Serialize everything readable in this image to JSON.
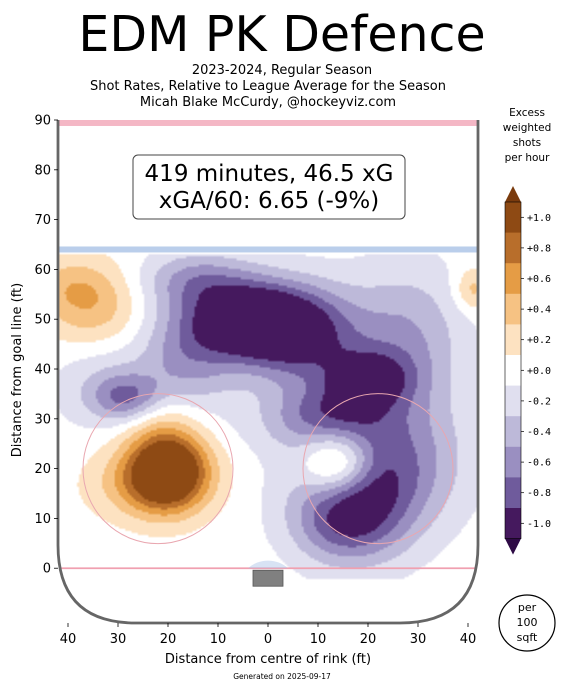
{
  "header": {
    "title": "EDM PK Defence",
    "subtitle_lines": [
      "2023-2024, Regular Season",
      "Shot Rates, Relative to League Average for the Season",
      "Micah Blake McCurdy, @hockeyviz.com"
    ]
  },
  "info_box": {
    "line1": "419 minutes, 46.5 xG",
    "line2": "xGA/60: 6.65 (-9%)"
  },
  "footer": {
    "generated": "Generated on 2025-09-17"
  },
  "colorbar": {
    "title_lines": [
      "Excess",
      "weighted",
      "shots",
      "per hour"
    ],
    "levels": [
      {
        "label": "+1.0",
        "color": "#8e4a14"
      },
      {
        "label": "+0.8",
        "color": "#b86e2b"
      },
      {
        "label": "+0.6",
        "color": "#e59c45"
      },
      {
        "label": "+0.4",
        "color": "#f6c283"
      },
      {
        "label": "+0.2",
        "color": "#fde2c1"
      },
      {
        "label": "+0.0",
        "color": "#ffffff"
      },
      {
        "label": "-0.2",
        "color": "#e0dfef"
      },
      {
        "label": "-0.4",
        "color": "#bdb9d9"
      },
      {
        "label": "-0.6",
        "color": "#9a8fc1"
      },
      {
        "label": "-0.8",
        "color": "#6f5b9c"
      },
      {
        "label": "-1.0",
        "color": "#45195e"
      }
    ],
    "badge_lines": [
      "per",
      "100",
      "sqft"
    ]
  },
  "chart_data": {
    "type": "heatmap",
    "xlabel": "Distance from centre of rink (ft)",
    "ylabel": "Distance from goal line (ft)",
    "xlim": [
      -42,
      42
    ],
    "ylim": [
      -11,
      90
    ],
    "x_ticks": [
      -40,
      -30,
      -20,
      -10,
      0,
      10,
      20,
      30,
      40
    ],
    "x_tick_labels": [
      "40",
      "30",
      "20",
      "10",
      "0",
      "10",
      "20",
      "30",
      "40"
    ],
    "y_ticks": [
      0,
      10,
      20,
      30,
      40,
      50,
      60,
      70,
      80,
      90
    ],
    "y_tick_labels": [
      "0",
      "10",
      "20",
      "30",
      "40",
      "50",
      "60",
      "70",
      "80",
      "90"
    ],
    "series": [
      {
        "x": 18,
        "y": 16,
        "value": -1.0,
        "sx": 9,
        "sy": 9
      },
      {
        "x": 15,
        "y": 8,
        "value": -0.35,
        "sx": 7,
        "sy": 5
      },
      {
        "x": 6,
        "y": 47,
        "value": -1.0,
        "sx": 9,
        "sy": 7
      },
      {
        "x": -4,
        "y": 50,
        "value": -1.05,
        "sx": 8,
        "sy": 5
      },
      {
        "x": 20,
        "y": 38,
        "value": -0.75,
        "sx": 6,
        "sy": 4
      },
      {
        "x": 12,
        "y": 32,
        "value": -0.45,
        "sx": 8,
        "sy": 4
      },
      {
        "x": -28,
        "y": 34,
        "value": -0.7,
        "sx": 5,
        "sy": 3.5
      },
      {
        "x": -16,
        "y": 43,
        "value": -0.55,
        "sx": 7,
        "sy": 8
      },
      {
        "x": -14,
        "y": 58,
        "value": -0.5,
        "sx": 8,
        "sy": 4
      },
      {
        "x": 28,
        "y": 45,
        "value": -0.5,
        "sx": 8,
        "sy": 11
      },
      {
        "x": 30,
        "y": 22,
        "value": -0.3,
        "sx": 9,
        "sy": 9
      },
      {
        "x": -34,
        "y": 38,
        "value": -0.25,
        "sx": 7,
        "sy": 7
      },
      {
        "x": 10,
        "y": 28,
        "value": -0.25,
        "sx": 10,
        "sy": 4
      },
      {
        "x": -20,
        "y": 20,
        "value": 1.35,
        "sx": 5.5,
        "sy": 5.5
      },
      {
        "x": -24,
        "y": 17,
        "value": 0.45,
        "sx": 8,
        "sy": 5
      },
      {
        "x": -23,
        "y": 31,
        "value": 0.25,
        "sx": 6,
        "sy": 4
      },
      {
        "x": 14,
        "y": 21,
        "value": 0.95,
        "sx": 5,
        "sy": 4.5
      },
      {
        "x": -35,
        "y": 52,
        "value": 0.45,
        "sx": 7,
        "sy": 6
      },
      {
        "x": -40,
        "y": 57,
        "value": 0.25,
        "sx": 6,
        "sy": 4
      },
      {
        "x": 41,
        "y": 56,
        "value": 0.4,
        "sx": 2.5,
        "sy": 3
      }
    ]
  }
}
